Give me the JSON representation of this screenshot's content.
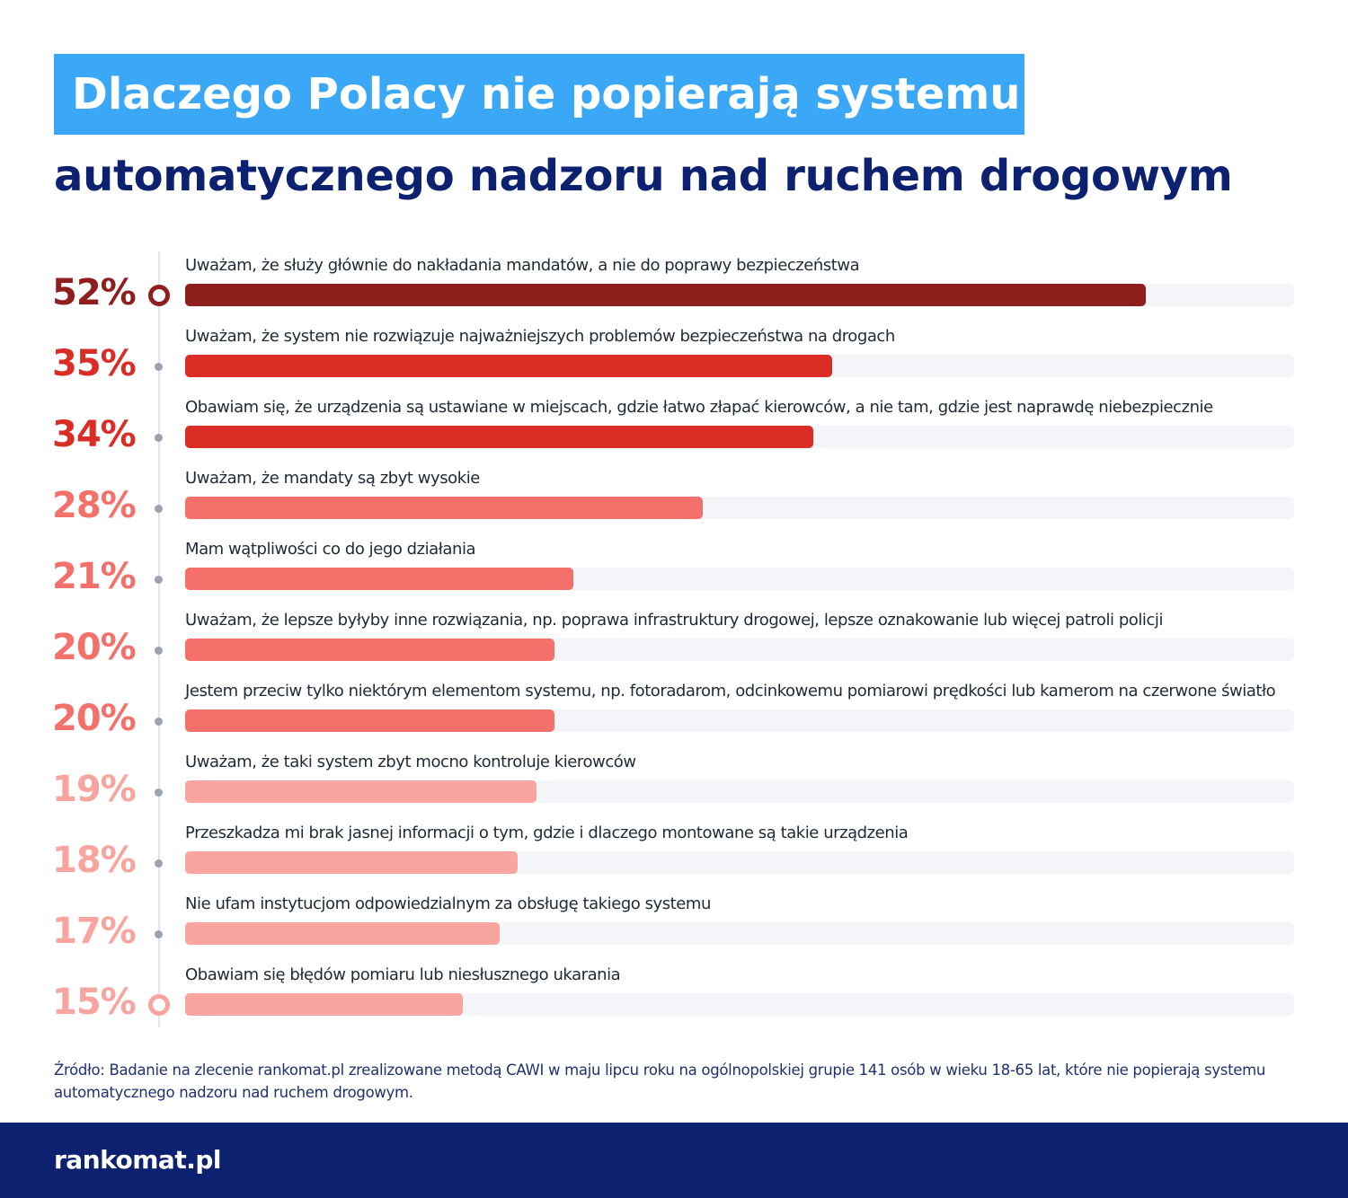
{
  "title": {
    "line1": "Dlaczego Polacy nie popierają systemu",
    "line2": "automatycznego nadzoru nad ruchem drogowym"
  },
  "chart_data": {
    "type": "bar",
    "orientation": "horizontal",
    "max_value": 60,
    "items": [
      {
        "value": 52,
        "pct_label": "52%",
        "label": "Uważam, że służy głównie do nakładania mandatów, a nie do poprawy bezpieczeństwa",
        "color": "#8f1f1c"
      },
      {
        "value": 35,
        "pct_label": "35%",
        "label": "Uważam, że system nie rozwiązuje najważniejszych problemów bezpieczeństwa na drogach",
        "color": "#d92d25"
      },
      {
        "value": 34,
        "pct_label": "34%",
        "label": "Obawiam się, że urządzenia są ustawiane w miejscach, gdzie łatwo złapać kierowców, a nie tam, gdzie jest naprawdę niebezpiecznie",
        "color": "#d92d25"
      },
      {
        "value": 28,
        "pct_label": "28%",
        "label": "Uważam, że mandaty są zbyt wysokie",
        "color": "#f4706a"
      },
      {
        "value": 21,
        "pct_label": "21%",
        "label": "Mam wątpliwości co do jego działania",
        "color": "#f4706a"
      },
      {
        "value": 20,
        "pct_label": "20%",
        "label": "Uważam, że lepsze byłyby inne rozwiązania, np. poprawa infrastruktury drogowej, lepsze oznakowanie lub więcej patroli policji",
        "color": "#f4706a"
      },
      {
        "value": 20,
        "pct_label": "20%",
        "label": "Jestem przeciw tylko niektórym elementom systemu, np. fotoradarom, odcinkowemu pomiarowi prędkości lub kamerom na czerwone światło",
        "color": "#f4706a"
      },
      {
        "value": 19,
        "pct_label": "19%",
        "label": "Uważam, że taki system zbyt mocno kontroluje kierowców",
        "color": "#f9a49f"
      },
      {
        "value": 18,
        "pct_label": "18%",
        "label": "Przeszkadza mi brak jasnej informacji o tym, gdzie i dlaczego montowane są takie urządzenia",
        "color": "#f9a49f"
      },
      {
        "value": 17,
        "pct_label": "17%",
        "label": "Nie ufam instytucjom odpowiedzialnym za obsługę takiego systemu",
        "color": "#f9a49f"
      },
      {
        "value": 15,
        "pct_label": "15%",
        "label": "Obawiam się błędów pomiaru lub niesłusznego ukarania",
        "color": "#f9a49f"
      }
    ]
  },
  "source": "Źródło: Badanie na zlecenie rankomat.pl zrealizowane metodą CAWI w maju lipcu roku na ogólnopolskiej grupie 141 osób w wieku 18-65 lat, które nie popierają systemu automatycznego nadzoru nad ruchem drogowym.",
  "footer": {
    "logo": "rankomat.pl"
  },
  "colors": {
    "title_bg": "#3aa8f7",
    "title_dark": "#0c2170",
    "track": "#f4f5f8",
    "footer_bg": "#0c2170"
  }
}
